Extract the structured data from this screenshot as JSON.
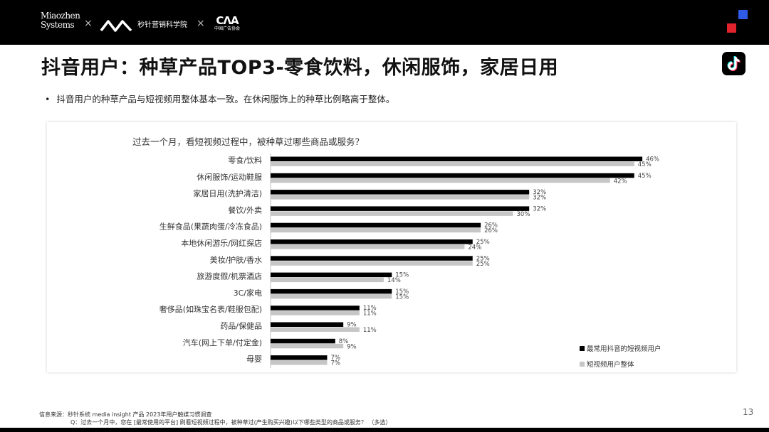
{
  "header": {
    "logo_line1": "Miaozhen",
    "logo_line2": "Systems",
    "cross1": "×",
    "cross2": "×",
    "partner_name": "秒针营销科学院",
    "cma_big": "CΛA",
    "cma_small": "中国广告协会"
  },
  "page": {
    "title": "抖音用户：种草产品TOP3-零食饮料，休闲服饰，家居日用",
    "bullet_mark": "•",
    "bullet_text": "抖音用户的种草产品与短视频用整体基本一致。在休闲服饰上的种草比例略高于整体。",
    "page_number": "13"
  },
  "footer": {
    "source": "信息来源：秒针系统 media insight 产品 2023年用户触媒习惯调查",
    "question": "Q：过去一个月中，您在 [最常使用的平台] 刷看短视频过程中，被种草过(产生购买兴趣)以下哪些类型的商品或服务？ （多选）"
  },
  "colors": {
    "series1": "#000000",
    "series2": "#c6c6c6",
    "accent_blue": "#2f5be8",
    "accent_red": "#e0232c"
  },
  "icons": {
    "brand_mark": "mm-logo-icon",
    "tiktok": "tiktok-icon"
  },
  "chart_data": {
    "type": "bar",
    "orientation": "horizontal",
    "title": "过去一个月，看短视频过程中，被种草过哪些商品或服务？",
    "categories": [
      "零食/饮料",
      "休闲服饰/运动鞋服",
      "家居日用(洗护清洁)",
      "餐饮/外卖",
      "生鲜食品(果蔬肉蛋/冷冻食品)",
      "本地休闲游乐/网红探店",
      "美妆/护肤/香水",
      "旅游度假/机票酒店",
      "3C/家电",
      "奢侈品(如珠宝名表/鞋服包配)",
      "药品/保健品",
      "汽车(网上下单/付定金)",
      "母婴"
    ],
    "series": [
      {
        "name": "最常用抖音的短视频用户",
        "values": [
          46,
          45,
          32,
          32,
          26,
          25,
          25,
          15,
          15,
          11,
          9,
          8,
          7
        ]
      },
      {
        "name": "短视频用户整体",
        "values": [
          45,
          42,
          32,
          30,
          26,
          24,
          25,
          14,
          15,
          11,
          11,
          9,
          7
        ]
      }
    ],
    "value_suffix": "%",
    "xlim": [
      0,
      46
    ],
    "grid": false,
    "legend_position": "bottom-right"
  }
}
